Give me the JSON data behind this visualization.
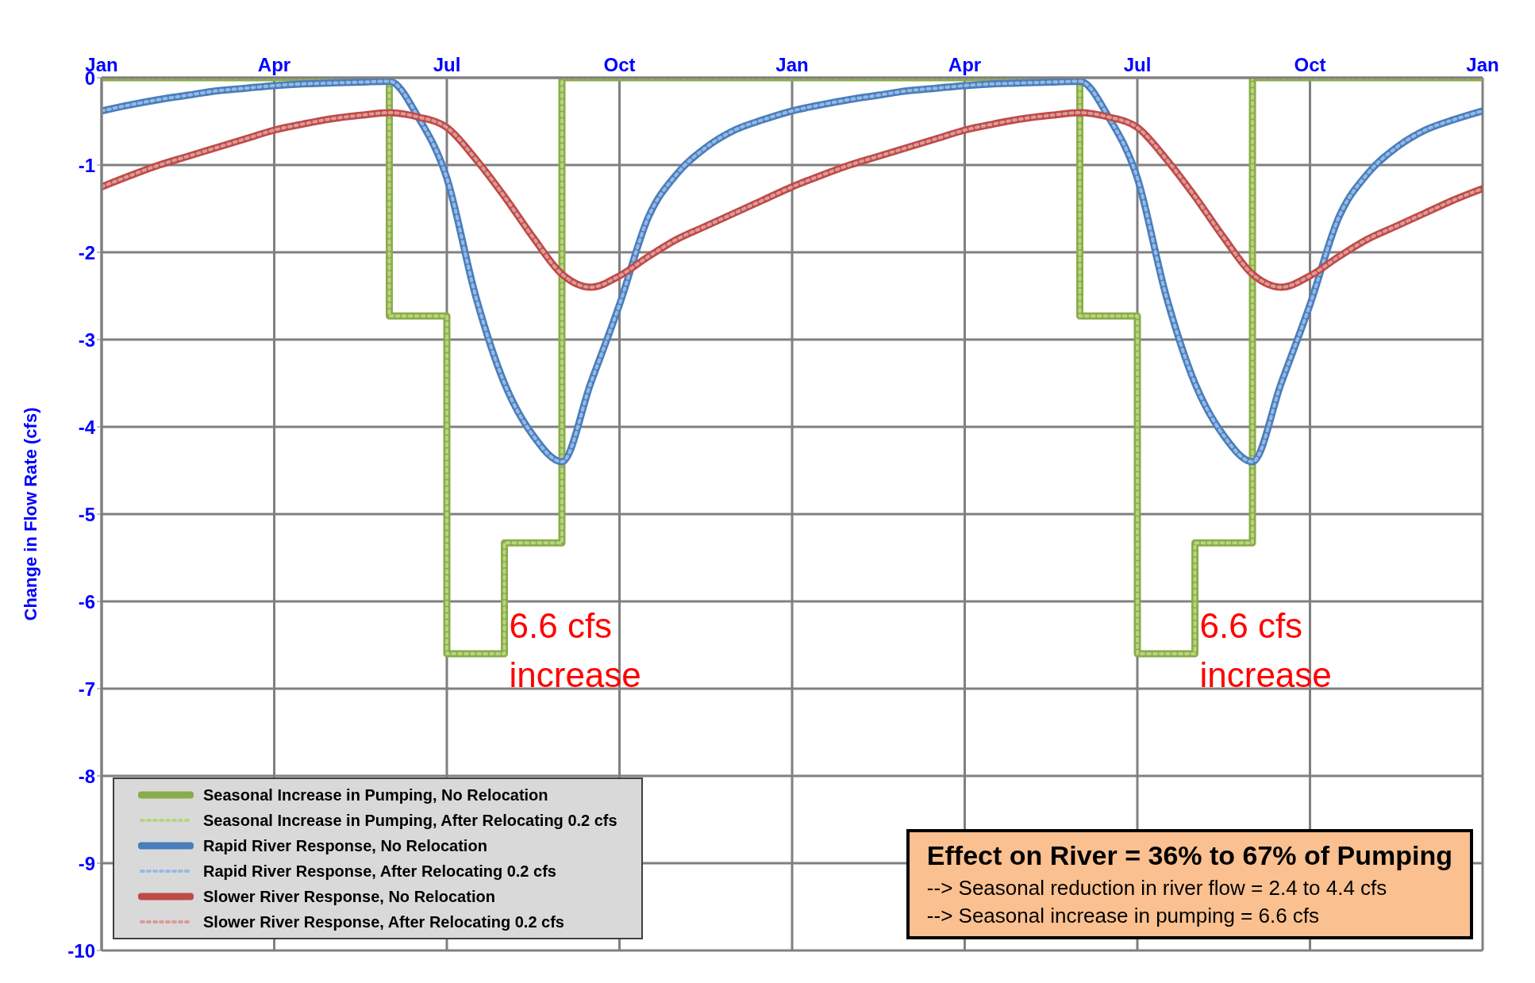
{
  "chart_data": {
    "type": "line",
    "ylabel": "Change in Flow Rate (cfs)",
    "categories": [
      "Jan",
      null,
      null,
      null,
      null,
      null,
      "Apr",
      null,
      null,
      null,
      null,
      null,
      "Jul",
      null,
      null,
      null,
      null,
      null,
      "Oct",
      null,
      null,
      null,
      null,
      null,
      "Jan",
      null,
      null,
      null,
      null,
      null,
      "Apr",
      null,
      null,
      null,
      null,
      null,
      "Jul",
      null,
      null,
      null,
      null,
      null,
      "Oct",
      null,
      null,
      null,
      null,
      null,
      "Jan"
    ],
    "ylim": [
      -10,
      0
    ],
    "yticks": [
      0,
      -1,
      -2,
      -3,
      -4,
      -5,
      -6,
      -7,
      -8,
      -9,
      -10
    ],
    "grid": true,
    "legend": "bottom left",
    "series": [
      {
        "name": "Seasonal Increase in Pumping, No Relocation",
        "type": "step",
        "color": "#8aac4a",
        "line_style": "solid",
        "values": [
          0,
          0,
          0,
          0,
          0,
          0,
          0,
          0,
          0,
          0,
          -2.73,
          -2.73,
          -6.6,
          -6.6,
          -5.33,
          -5.33,
          0,
          0,
          0,
          0,
          0,
          0,
          0,
          0,
          0,
          0,
          0,
          0,
          0,
          0,
          0,
          0,
          0,
          0,
          -2.73,
          -2.73,
          -6.6,
          -6.6,
          -5.33,
          -5.33,
          0,
          0,
          0,
          0,
          0,
          0,
          0,
          0,
          0
        ]
      },
      {
        "name": "Seasonal Increase in Pumping, After Relocating 0.2 cfs",
        "type": "step",
        "color": "#b8d47e",
        "line_style": "dotted",
        "values": [
          0,
          0,
          0,
          0,
          0,
          0,
          0,
          0,
          0,
          0,
          -2.73,
          -2.73,
          -6.6,
          -6.6,
          -5.33,
          -5.33,
          0,
          0,
          0,
          0,
          0,
          0,
          0,
          0,
          0,
          0,
          0,
          0,
          0,
          0,
          0,
          0,
          0,
          0,
          -2.73,
          -2.73,
          -6.6,
          -6.6,
          -5.33,
          -5.33,
          0,
          0,
          0,
          0,
          0,
          0,
          0,
          0,
          0
        ]
      },
      {
        "name": "Rapid River Response, No Relocation",
        "color": "#4a7ebb",
        "line_style": "solid",
        "values": [
          -0.38,
          -0.31,
          -0.25,
          -0.2,
          -0.15,
          -0.12,
          -0.09,
          -0.07,
          -0.06,
          -0.05,
          -0.04,
          -0.45,
          -1.15,
          -2.5,
          -3.5,
          -4.1,
          -4.4,
          -3.5,
          -2.6,
          -1.6,
          -1.1,
          -0.8,
          -0.6,
          -0.48,
          -0.38,
          -0.31,
          -0.25,
          -0.2,
          -0.15,
          -0.12,
          -0.09,
          -0.07,
          -0.06,
          -0.05,
          -0.04,
          -0.45,
          -1.15,
          -2.5,
          -3.5,
          -4.1,
          -4.4,
          -3.5,
          -2.6,
          -1.6,
          -1.1,
          -0.8,
          -0.6,
          -0.48,
          -0.38
        ]
      },
      {
        "name": "Rapid River Response, After Relocating 0.2 cfs",
        "color": "#95b9e6",
        "line_style": "dotted",
        "values": [
          -0.38,
          -0.31,
          -0.25,
          -0.2,
          -0.15,
          -0.12,
          -0.09,
          -0.07,
          -0.06,
          -0.05,
          -0.04,
          -0.45,
          -1.15,
          -2.5,
          -3.5,
          -4.1,
          -4.4,
          -3.5,
          -2.6,
          -1.6,
          -1.1,
          -0.8,
          -0.6,
          -0.48,
          -0.38,
          -0.31,
          -0.25,
          -0.2,
          -0.15,
          -0.12,
          -0.09,
          -0.07,
          -0.06,
          -0.05,
          -0.04,
          -0.45,
          -1.15,
          -2.5,
          -3.5,
          -4.1,
          -4.4,
          -3.5,
          -2.6,
          -1.6,
          -1.1,
          -0.8,
          -0.6,
          -0.48,
          -0.38
        ]
      },
      {
        "name": "Slower River Response, No Relocation",
        "color": "#be4b48",
        "line_style": "solid",
        "values": [
          -1.25,
          -1.12,
          -1.0,
          -0.9,
          -0.8,
          -0.7,
          -0.6,
          -0.53,
          -0.47,
          -0.43,
          -0.4,
          -0.45,
          -0.57,
          -0.93,
          -1.36,
          -1.83,
          -2.25,
          -2.4,
          -2.27,
          -2.05,
          -1.85,
          -1.7,
          -1.55,
          -1.4,
          -1.25,
          -1.12,
          -1.0,
          -0.9,
          -0.8,
          -0.7,
          -0.6,
          -0.53,
          -0.47,
          -0.43,
          -0.4,
          -0.45,
          -0.57,
          -0.93,
          -1.36,
          -1.83,
          -2.25,
          -2.4,
          -2.27,
          -2.05,
          -1.85,
          -1.7,
          -1.55,
          -1.4,
          -1.27
        ]
      },
      {
        "name": "Slower River Response, After Relocating 0.2 cfs",
        "color": "#dc9a98",
        "line_style": "dotted",
        "values": [
          -1.25,
          -1.12,
          -1.0,
          -0.9,
          -0.8,
          -0.7,
          -0.6,
          -0.53,
          -0.47,
          -0.43,
          -0.4,
          -0.45,
          -0.57,
          -0.93,
          -1.36,
          -1.83,
          -2.25,
          -2.4,
          -2.27,
          -2.05,
          -1.85,
          -1.7,
          -1.55,
          -1.4,
          -1.25,
          -1.12,
          -1.0,
          -0.9,
          -0.8,
          -0.7,
          -0.6,
          -0.53,
          -0.47,
          -0.43,
          -0.4,
          -0.45,
          -0.57,
          -0.93,
          -1.36,
          -1.83,
          -2.25,
          -2.4,
          -2.27,
          -2.05,
          -1.85,
          -1.7,
          -1.55,
          -1.4,
          -1.27
        ]
      }
    ],
    "annotations": [
      "6.6 cfs increase",
      "6.6 cfs increase",
      "Effect on River = 36% to 67% of Pumping",
      "--> Seasonal reduction in river flow = 2.4 to 4.4 cfs",
      "--> Seasonal increase in pumping = 6.6 cfs"
    ]
  }
}
